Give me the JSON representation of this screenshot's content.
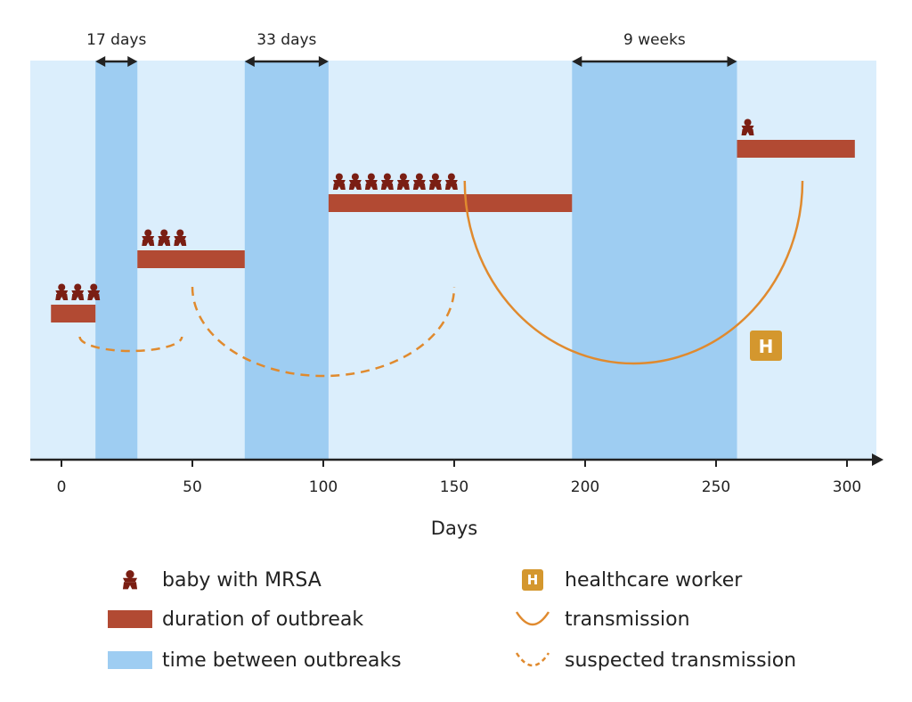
{
  "chart_data": {
    "type": "timeline",
    "xlabel": "Days",
    "xlim": [
      -12,
      313
    ],
    "x_ticks": [
      0,
      50,
      100,
      150,
      200,
      250,
      300
    ],
    "outbreaks": [
      {
        "start": -4,
        "end": 13,
        "babies": 3
      },
      {
        "start": 29,
        "end": 70,
        "babies": 3
      },
      {
        "start": 102,
        "end": 195,
        "babies": 8
      },
      {
        "start": 258,
        "end": 303,
        "babies": 1
      }
    ],
    "gaps": [
      {
        "start": 13,
        "end": 29,
        "label": "17 days"
      },
      {
        "start": 70,
        "end": 102,
        "label": "33 days"
      },
      {
        "start": 195,
        "end": 258,
        "label": "9 weeks"
      }
    ],
    "transmissions": [
      {
        "from": 7,
        "to": 46,
        "type": "suspected"
      },
      {
        "from": 50,
        "to": 150,
        "type": "suspected"
      },
      {
        "from": 154,
        "to": 283,
        "type": "confirmed"
      }
    ],
    "healthcare_worker_badge": "H"
  },
  "legend": [
    {
      "symbol": "baby-icon",
      "label": "baby with MRSA"
    },
    {
      "symbol": "duration-bar",
      "label": "duration of outbreak"
    },
    {
      "symbol": "gap-swatch",
      "label": "time between outbreaks"
    },
    {
      "symbol": "h-badge",
      "label": "healthcare worker",
      "badge_text": "H"
    },
    {
      "symbol": "transmission-arc",
      "label": "transmission"
    },
    {
      "symbol": "suspected-arc",
      "label": "suspected transmission"
    }
  ],
  "colors": {
    "background": "#dbeefc",
    "gap": "#9ecdf2",
    "outbreak": "#b24a33",
    "baby": "#7a1e13",
    "transmission": "#e08a2e",
    "badge": "#d4972e",
    "axis": "#222222"
  }
}
